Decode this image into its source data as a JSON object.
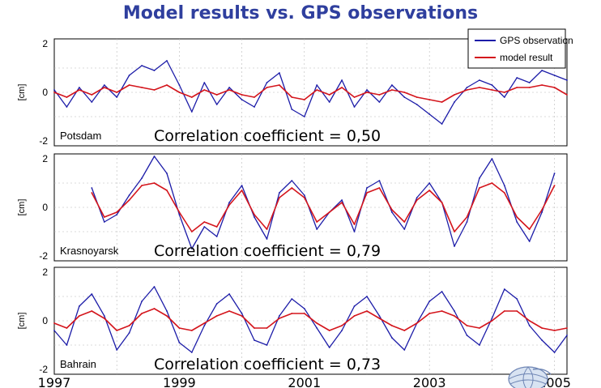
{
  "title": "Model results vs. GPS observations",
  "colors": {
    "title": "#2f3f9e",
    "gps": "#1c1ca8",
    "model": "#d4151c",
    "frame_bg": "#ffffff",
    "grid": "#b8b8b8"
  },
  "icon": "globe-logo-icon",
  "legend": {
    "position": "top-right",
    "items": [
      "GPS observation",
      "model result"
    ]
  },
  "chart_data": [
    {
      "type": "line",
      "station": "Potsdam",
      "annotation": "Correlation coefficient = 0,50",
      "ylabel": "[cm]",
      "yticks": [
        "2",
        "0",
        "-2"
      ],
      "ylim": [
        -2.2,
        2.2
      ],
      "xlim": [
        1997.0,
        2005.2
      ],
      "grid": true,
      "series": [
        {
          "name": "GPS observation",
          "x": [
            1997.0,
            1997.2,
            1997.4,
            1997.6,
            1997.8,
            1998.0,
            1998.2,
            1998.4,
            1998.6,
            1998.8,
            1999.0,
            1999.2,
            1999.4,
            1999.6,
            1999.8,
            2000.0,
            2000.2,
            2000.4,
            2000.6,
            2000.8,
            2001.0,
            2001.2,
            2001.4,
            2001.6,
            2001.8,
            2002.0,
            2002.2,
            2002.4,
            2002.6,
            2002.8,
            2003.0,
            2003.2,
            2003.4,
            2003.6,
            2003.8,
            2004.0,
            2004.2,
            2004.4,
            2004.6,
            2004.8,
            2005.0,
            2005.2
          ],
          "y": [
            0.1,
            -0.6,
            0.2,
            -0.4,
            0.3,
            -0.2,
            0.7,
            1.1,
            0.9,
            1.3,
            0.3,
            -0.8,
            0.4,
            -0.5,
            0.2,
            -0.3,
            -0.6,
            0.4,
            0.8,
            -0.7,
            -1.0,
            0.3,
            -0.4,
            0.5,
            -0.6,
            0.1,
            -0.4,
            0.3,
            -0.2,
            -0.5,
            -0.9,
            -1.3,
            -0.4,
            0.2,
            0.5,
            0.3,
            -0.2,
            0.6,
            0.4,
            0.9,
            0.7,
            0.5
          ]
        },
        {
          "name": "model result",
          "x": [
            1997.0,
            1997.2,
            1997.4,
            1997.6,
            1997.8,
            1998.0,
            1998.2,
            1998.4,
            1998.6,
            1998.8,
            1999.0,
            1999.2,
            1999.4,
            1999.6,
            1999.8,
            2000.0,
            2000.2,
            2000.4,
            2000.6,
            2000.8,
            2001.0,
            2001.2,
            2001.4,
            2001.6,
            2001.8,
            2002.0,
            2002.2,
            2002.4,
            2002.6,
            2002.8,
            2003.0,
            2003.2,
            2003.4,
            2003.6,
            2003.8,
            2004.0,
            2004.2,
            2004.4,
            2004.6,
            2004.8,
            2005.0,
            2005.2
          ],
          "y": [
            0.0,
            -0.2,
            0.1,
            -0.1,
            0.2,
            0.0,
            0.3,
            0.2,
            0.1,
            0.3,
            0.0,
            -0.2,
            0.1,
            -0.1,
            0.1,
            -0.1,
            -0.2,
            0.2,
            0.3,
            -0.2,
            -0.3,
            0.1,
            -0.1,
            0.2,
            -0.2,
            0.0,
            -0.1,
            0.1,
            0.0,
            -0.2,
            -0.3,
            -0.4,
            -0.1,
            0.1,
            0.2,
            0.1,
            0.0,
            0.2,
            0.2,
            0.3,
            0.2,
            -0.1
          ]
        }
      ]
    },
    {
      "type": "line",
      "station": "Krasnoyarsk",
      "annotation": "Correlation coefficient = 0,79",
      "ylabel": "[cm]",
      "yticks": [
        "2",
        "0",
        "-2"
      ],
      "ylim": [
        -2.2,
        2.2
      ],
      "xlim": [
        1997.0,
        2005.2
      ],
      "grid": true,
      "series": [
        {
          "name": "GPS observation",
          "x": [
            1997.6,
            1997.8,
            1998.0,
            1998.2,
            1998.4,
            1998.6,
            1998.8,
            1999.0,
            1999.2,
            1999.4,
            1999.6,
            1999.8,
            2000.0,
            2000.2,
            2000.4,
            2000.6,
            2000.8,
            2001.0,
            2001.2,
            2001.4,
            2001.6,
            2001.8,
            2002.0,
            2002.2,
            2002.4,
            2002.6,
            2002.8,
            2003.0,
            2003.2,
            2003.4,
            2003.6,
            2003.8,
            2004.0,
            2004.2,
            2004.4,
            2004.6,
            2004.8,
            2005.0
          ],
          "y": [
            0.8,
            -0.6,
            -0.3,
            0.5,
            1.2,
            2.1,
            1.4,
            -0.3,
            -1.7,
            -0.8,
            -1.2,
            0.2,
            0.9,
            -0.4,
            -1.3,
            0.6,
            1.1,
            0.5,
            -0.9,
            -0.2,
            0.3,
            -1.0,
            0.8,
            1.1,
            -0.2,
            -0.9,
            0.4,
            1.0,
            0.2,
            -1.6,
            -0.6,
            1.2,
            2.0,
            0.9,
            -0.6,
            -1.4,
            -0.2,
            1.4
          ]
        },
        {
          "name": "model result",
          "x": [
            1997.6,
            1997.8,
            1998.0,
            1998.2,
            1998.4,
            1998.6,
            1998.8,
            1999.0,
            1999.2,
            1999.4,
            1999.6,
            1999.8,
            2000.0,
            2000.2,
            2000.4,
            2000.6,
            2000.8,
            2001.0,
            2001.2,
            2001.4,
            2001.6,
            2001.8,
            2002.0,
            2002.2,
            2002.4,
            2002.6,
            2002.8,
            2003.0,
            2003.2,
            2003.4,
            2003.6,
            2003.8,
            2004.0,
            2004.2,
            2004.4,
            2004.6,
            2004.8,
            2005.0
          ],
          "y": [
            0.6,
            -0.4,
            -0.2,
            0.3,
            0.9,
            1.0,
            0.7,
            -0.2,
            -1.0,
            -0.6,
            -0.8,
            0.1,
            0.7,
            -0.3,
            -0.9,
            0.4,
            0.8,
            0.4,
            -0.6,
            -0.2,
            0.2,
            -0.7,
            0.6,
            0.8,
            -0.1,
            -0.6,
            0.3,
            0.7,
            0.2,
            -1.0,
            -0.4,
            0.8,
            1.0,
            0.6,
            -0.4,
            -0.9,
            -0.1,
            0.9
          ]
        }
      ]
    },
    {
      "type": "line",
      "station": "Bahrain",
      "annotation": "Correlation coefficient = 0,73",
      "ylabel": "[cm]",
      "yticks": [
        "2",
        "0",
        "-2"
      ],
      "ylim": [
        -2.2,
        2.2
      ],
      "xlim": [
        1997.0,
        2005.2
      ],
      "grid": true,
      "xticks": [
        "1997",
        "1999",
        "2001",
        "2003",
        "2005"
      ],
      "xtick_values": [
        1997,
        1999,
        2001,
        2003,
        2005
      ],
      "series": [
        {
          "name": "GPS observation",
          "x": [
            1997.0,
            1997.2,
            1997.4,
            1997.6,
            1997.8,
            1998.0,
            1998.2,
            1998.4,
            1998.6,
            1998.8,
            1999.0,
            1999.2,
            1999.4,
            1999.6,
            1999.8,
            2000.0,
            2000.2,
            2000.4,
            2000.6,
            2000.8,
            2001.0,
            2001.2,
            2001.4,
            2001.6,
            2001.8,
            2002.0,
            2002.2,
            2002.4,
            2002.6,
            2002.8,
            2003.0,
            2003.2,
            2003.4,
            2003.6,
            2003.8,
            2004.0,
            2004.2,
            2004.4,
            2004.6,
            2004.8,
            2005.0,
            2005.2
          ],
          "y": [
            -0.4,
            -1.0,
            0.6,
            1.1,
            0.2,
            -1.2,
            -0.5,
            0.8,
            1.4,
            0.4,
            -0.9,
            -1.3,
            -0.2,
            0.7,
            1.1,
            0.3,
            -0.8,
            -1.0,
            0.2,
            0.9,
            0.5,
            -0.3,
            -1.1,
            -0.4,
            0.6,
            1.0,
            0.2,
            -0.7,
            -1.2,
            -0.1,
            0.8,
            1.2,
            0.4,
            -0.6,
            -1.0,
            0.1,
            1.3,
            0.9,
            -0.2,
            -0.8,
            -1.3,
            -0.6
          ]
        },
        {
          "name": "model result",
          "x": [
            1997.0,
            1997.2,
            1997.4,
            1997.6,
            1997.8,
            1998.0,
            1998.2,
            1998.4,
            1998.6,
            1998.8,
            1999.0,
            1999.2,
            1999.4,
            1999.6,
            1999.8,
            2000.0,
            2000.2,
            2000.4,
            2000.6,
            2000.8,
            2001.0,
            2001.2,
            2001.4,
            2001.6,
            2001.8,
            2002.0,
            2002.2,
            2002.4,
            2002.6,
            2002.8,
            2003.0,
            2003.2,
            2003.4,
            2003.6,
            2003.8,
            2004.0,
            2004.2,
            2004.4,
            2004.6,
            2004.8,
            2005.0,
            2005.2
          ],
          "y": [
            -0.1,
            -0.3,
            0.2,
            0.4,
            0.1,
            -0.4,
            -0.2,
            0.3,
            0.5,
            0.2,
            -0.3,
            -0.4,
            -0.1,
            0.2,
            0.4,
            0.2,
            -0.3,
            -0.3,
            0.1,
            0.3,
            0.3,
            -0.1,
            -0.4,
            -0.2,
            0.2,
            0.4,
            0.1,
            -0.2,
            -0.4,
            -0.1,
            0.3,
            0.4,
            0.2,
            -0.2,
            -0.3,
            0.0,
            0.4,
            0.4,
            0.0,
            -0.3,
            -0.4,
            -0.3
          ]
        }
      ]
    }
  ]
}
